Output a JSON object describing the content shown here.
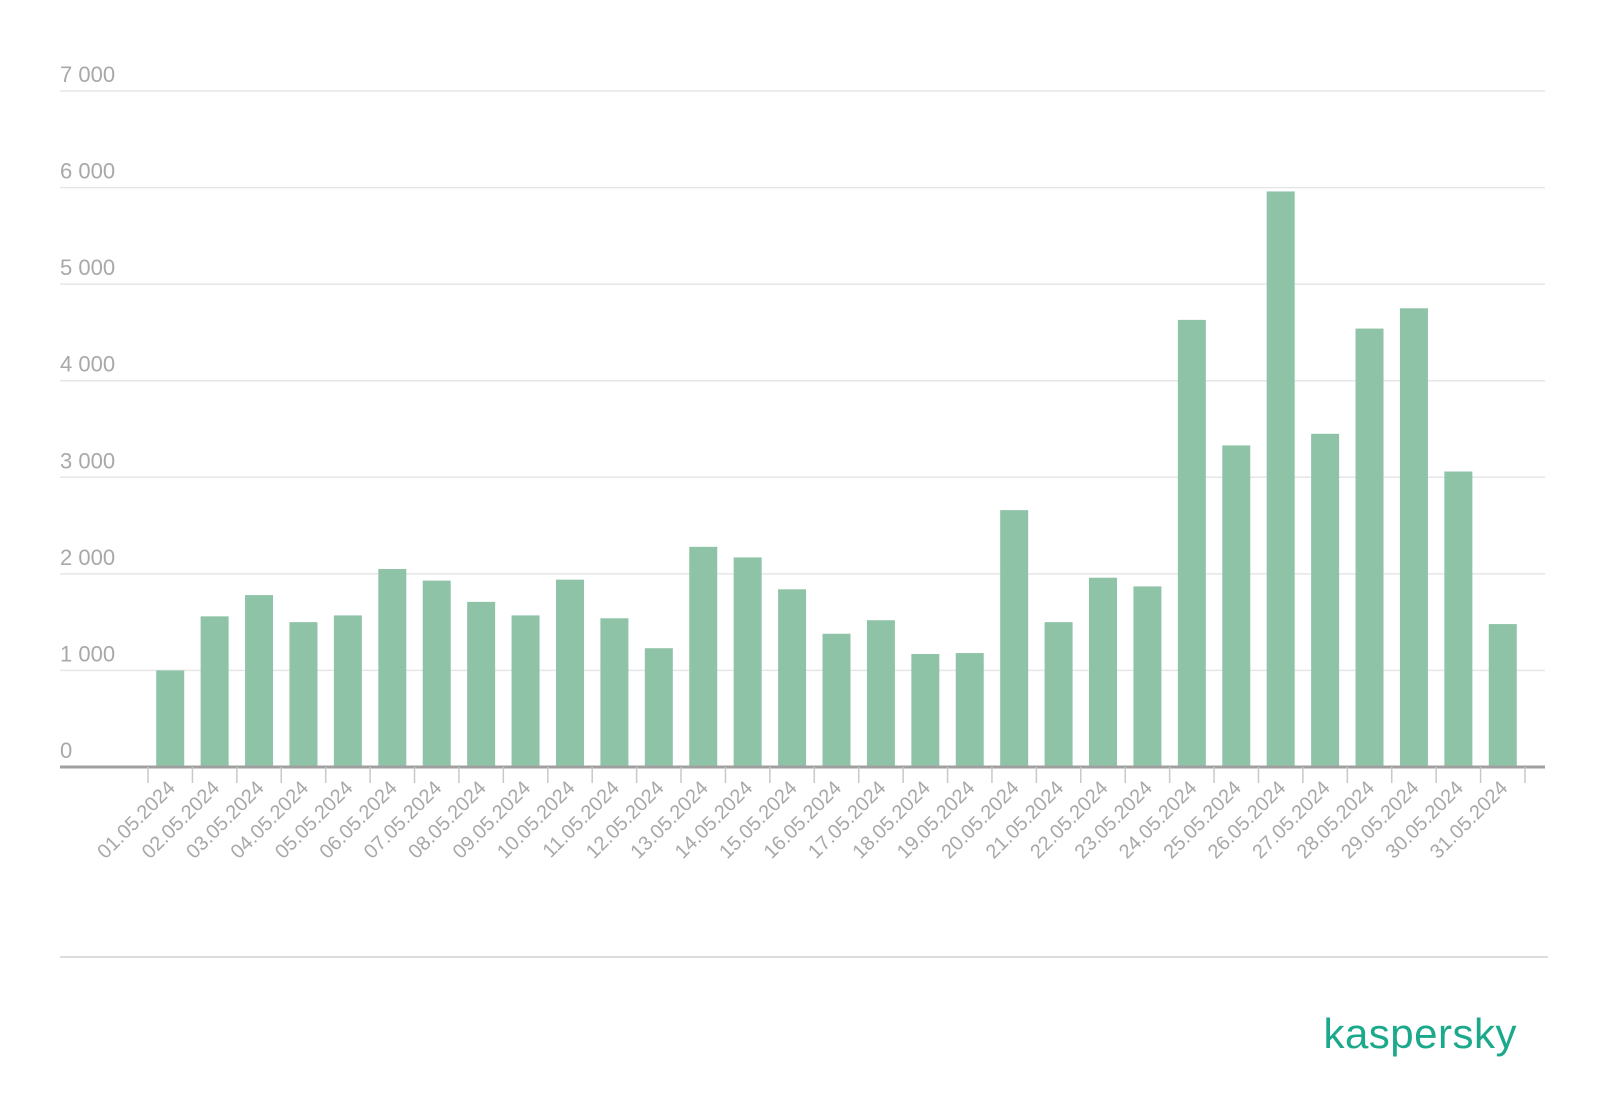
{
  "chart_data": {
    "type": "bar",
    "title": "",
    "xlabel": "",
    "ylabel": "",
    "ylim": [
      0,
      7000
    ],
    "yticks": [
      0,
      1000,
      2000,
      3000,
      4000,
      5000,
      6000,
      7000
    ],
    "ytick_labels": [
      "0",
      "1 000",
      "2 000",
      "3 000",
      "4 000",
      "5 000",
      "6 000",
      "7 000"
    ],
    "grid": true,
    "bar_color": "#8fc3a8",
    "categories": [
      "01.05.2024",
      "02.05.2024",
      "03.05.2024",
      "04.05.2024",
      "05.05.2024",
      "06.05.2024",
      "07.05.2024",
      "08.05.2024",
      "09.05.2024",
      "10.05.2024",
      "11.05.2024",
      "12.05.2024",
      "13.05.2024",
      "14.05.2024",
      "15.05.2024",
      "16.05.2024",
      "17.05.2024",
      "18.05.2024",
      "19.05.2024",
      "20.05.2024",
      "21.05.2024",
      "22.05.2024",
      "23.05.2024",
      "24.05.2024",
      "25.05.2024",
      "26.05.2024",
      "27.05.2024",
      "28.05.2024",
      "29.05.2024",
      "30.05.2024",
      "31.05.2024"
    ],
    "values": [
      1000,
      1560,
      1780,
      1500,
      1570,
      2050,
      1930,
      1710,
      1570,
      1940,
      1540,
      1230,
      2280,
      2170,
      1840,
      1380,
      1520,
      1170,
      1180,
      2660,
      1500,
      1960,
      1870,
      4630,
      3330,
      5960,
      3450,
      4540,
      4750,
      3060,
      1480
    ]
  },
  "brand": {
    "logo_text": "kaspersky",
    "color": "#1aa98a"
  }
}
